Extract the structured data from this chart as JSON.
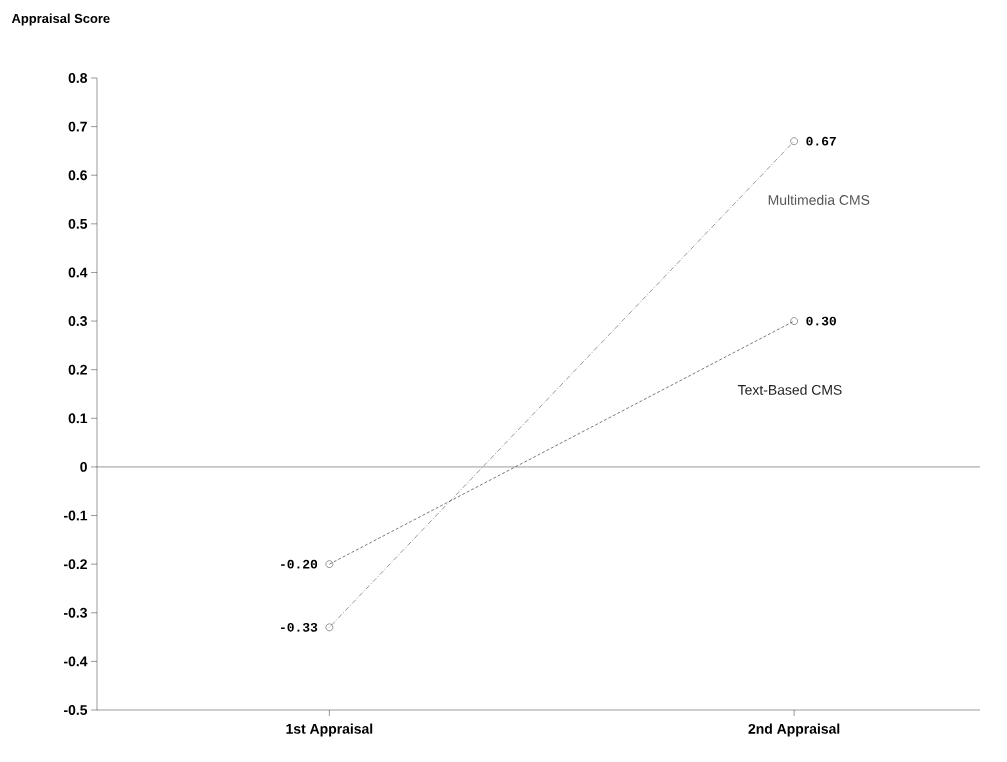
{
  "chart_data": {
    "type": "line",
    "ylabel": "Appraisal Score",
    "categories": [
      "1st Appraisal",
      "2nd Appraisal"
    ],
    "series": [
      {
        "name": "Multimedia CMS",
        "color": "#555555",
        "values": [
          -0.33,
          0.67
        ],
        "value_labels": [
          "-0.33",
          "0.67"
        ],
        "line_style": "dotted"
      },
      {
        "name": "Text-Based CMS",
        "color": "#222222",
        "values": [
          -0.2,
          0.3
        ],
        "value_labels": [
          "-0.20",
          "0.30"
        ],
        "line_style": "dashed"
      }
    ],
    "ylim": [
      -0.5,
      0.8
    ],
    "yticks": [
      -0.5,
      -0.4,
      -0.3,
      -0.2,
      -0.1,
      0,
      0.1,
      0.2,
      0.3,
      0.4,
      0.5,
      0.6,
      0.7,
      0.8
    ],
    "ref_lines": [
      {
        "axis": "y",
        "value": 0,
        "color": "#000000"
      }
    ],
    "marker": "circle",
    "grid": false
  }
}
